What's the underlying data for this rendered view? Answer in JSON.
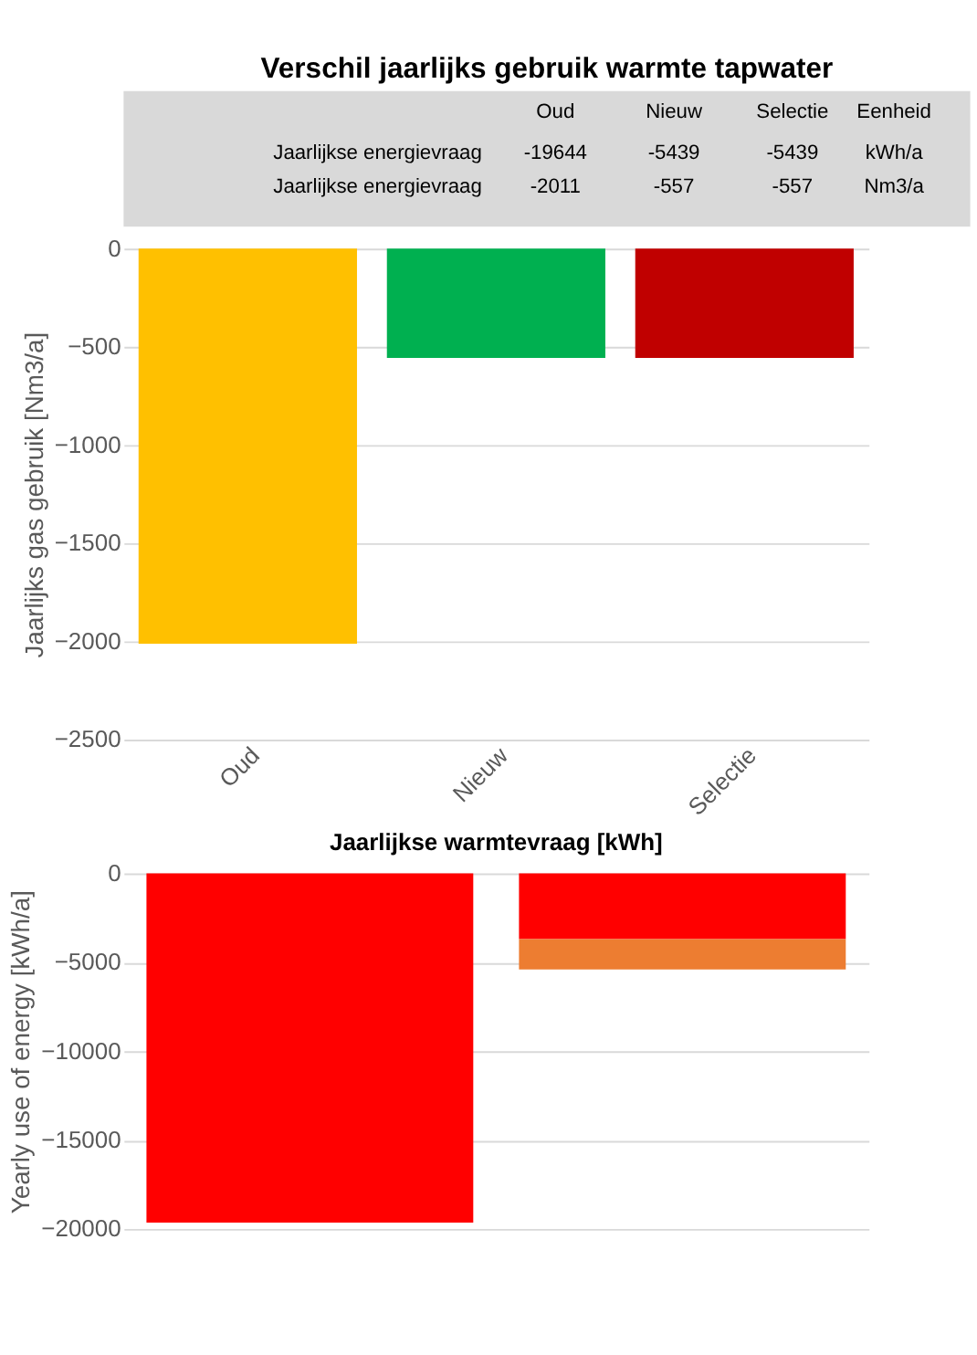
{
  "chart_data": [
    {
      "type": "other",
      "title": "Verschil jaarlijks gebruik warmte tapwater",
      "annotations": [
        "Oud",
        "Nieuw",
        "Selectie",
        "Eenheid",
        "Jaarlijkse energievraag",
        "-19644",
        "-5439",
        "-5439",
        "kWh/a",
        "Jaarlijkse energievraag",
        "-2011",
        "-557",
        "-557",
        "Nm3/a"
      ]
    },
    {
      "type": "bar",
      "categories": [
        "Oud",
        "Nieuw",
        "Selectie"
      ],
      "values": [
        -2011,
        -557,
        -557
      ],
      "colors": [
        "#ffc000",
        "#00b050",
        "#c00000"
      ],
      "ylabel": "Jaarlijks gas gebruik [Nm3/a]",
      "ylim": [
        -2500,
        0
      ],
      "yticks": [
        -2500,
        -2000,
        -1500,
        -1000,
        -500,
        0
      ],
      "grid": "y"
    },
    {
      "type": "bar",
      "title": "Jaarlijkse warmtevraag [kWh]",
      "categories": [
        null,
        null
      ],
      "stacked": true,
      "series": [
        {
          "color": "#ff0000",
          "values": [
            -19644,
            -3700
          ]
        },
        {
          "color": "#ed7d31",
          "values": [
            null,
            -1700
          ]
        }
      ],
      "ylabel": "Yearly use of energy [kWh/a]",
      "ylim": [
        -20000,
        0
      ],
      "yticks": [
        -20000,
        -15000,
        -10000,
        -5000,
        0
      ],
      "grid": "y",
      "tick_labels": "y"
    }
  ]
}
